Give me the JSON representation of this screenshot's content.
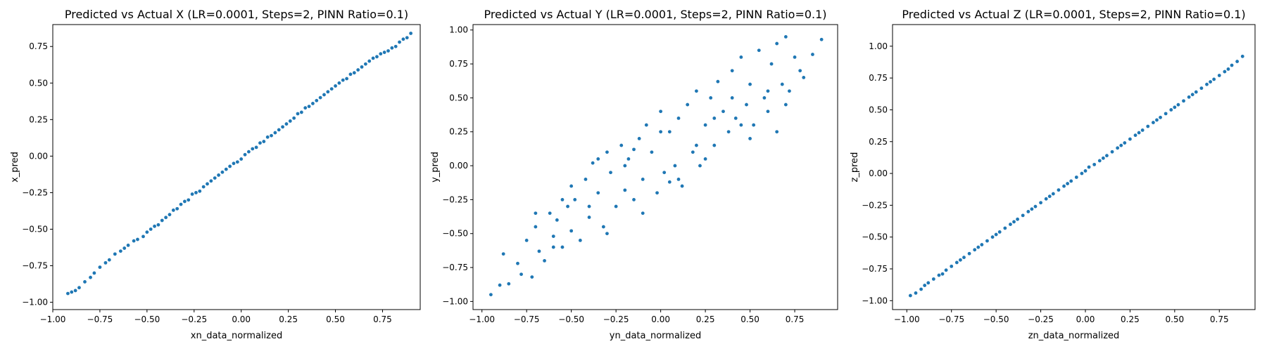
{
  "chart_data": [
    {
      "type": "scatter",
      "title": "Predicted vs Actual X (LR=0.0001, Steps=2, PINN Ratio=0.1)",
      "xlabel": "xn_data_normalized",
      "ylabel": "x_pred",
      "xlim": [
        -1.0,
        0.95
      ],
      "ylim": [
        -1.05,
        0.9
      ],
      "xticks": [
        -1.0,
        -0.75,
        -0.5,
        -0.25,
        0.0,
        0.25,
        0.5,
        0.75
      ],
      "yticks": [
        -1.0,
        -0.75,
        -0.5,
        -0.25,
        0.0,
        0.25,
        0.5,
        0.75
      ],
      "grid": false,
      "color": "#1f77b4",
      "series": [
        {
          "x": [
            -0.92,
            -0.9,
            -0.88,
            -0.86,
            -0.83,
            -0.8,
            -0.78,
            -0.75,
            -0.72,
            -0.7,
            -0.67,
            -0.64,
            -0.62,
            -0.6,
            -0.57,
            -0.55,
            -0.52,
            -0.5,
            -0.48,
            -0.46,
            -0.44,
            -0.42,
            -0.4,
            -0.38,
            -0.36,
            -0.34,
            -0.32,
            -0.3,
            -0.28,
            -0.26,
            -0.24,
            -0.22,
            -0.2,
            -0.18,
            -0.16,
            -0.14,
            -0.12,
            -0.1,
            -0.08,
            -0.06,
            -0.04,
            -0.02,
            0.0,
            0.02,
            0.04,
            0.06,
            0.08,
            0.1,
            0.12,
            0.14,
            0.16,
            0.18,
            0.2,
            0.22,
            0.24,
            0.26,
            0.28,
            0.3,
            0.32,
            0.34,
            0.36,
            0.38,
            0.4,
            0.42,
            0.44,
            0.46,
            0.48,
            0.5,
            0.52,
            0.54,
            0.56,
            0.58,
            0.6,
            0.62,
            0.64,
            0.66,
            0.68,
            0.7,
            0.72,
            0.74,
            0.76,
            0.78,
            0.8,
            0.82,
            0.84,
            0.86,
            0.88,
            0.9
          ],
          "y": [
            -0.94,
            -0.93,
            -0.92,
            -0.9,
            -0.86,
            -0.83,
            -0.8,
            -0.76,
            -0.73,
            -0.71,
            -0.67,
            -0.65,
            -0.63,
            -0.61,
            -0.58,
            -0.57,
            -0.55,
            -0.52,
            -0.5,
            -0.48,
            -0.47,
            -0.44,
            -0.42,
            -0.4,
            -0.37,
            -0.36,
            -0.33,
            -0.31,
            -0.3,
            -0.26,
            -0.25,
            -0.24,
            -0.21,
            -0.19,
            -0.17,
            -0.15,
            -0.13,
            -0.11,
            -0.09,
            -0.07,
            -0.05,
            -0.04,
            -0.02,
            0.01,
            0.03,
            0.05,
            0.06,
            0.09,
            0.1,
            0.13,
            0.14,
            0.16,
            0.18,
            0.2,
            0.22,
            0.24,
            0.26,
            0.29,
            0.3,
            0.33,
            0.34,
            0.36,
            0.38,
            0.4,
            0.42,
            0.44,
            0.46,
            0.48,
            0.5,
            0.52,
            0.53,
            0.56,
            0.57,
            0.59,
            0.61,
            0.63,
            0.65,
            0.67,
            0.68,
            0.7,
            0.71,
            0.72,
            0.74,
            0.75,
            0.78,
            0.8,
            0.81,
            0.84
          ]
        }
      ]
    },
    {
      "type": "scatter",
      "title": "Predicted vs Actual Y (LR=0.0001, Steps=2, PINN Ratio=0.1)",
      "xlabel": "yn_data_normalized",
      "ylabel": "y_pred",
      "xlim": [
        -1.05,
        0.99
      ],
      "ylim": [
        -1.06,
        1.04
      ],
      "xticks": [
        -1.0,
        -0.75,
        -0.5,
        -0.25,
        0.0,
        0.25,
        0.5,
        0.75
      ],
      "yticks": [
        -1.0,
        -0.75,
        -0.5,
        -0.25,
        0.0,
        0.25,
        0.5,
        0.75,
        1.0
      ],
      "grid": false,
      "color": "#1f77b4",
      "series": [
        {
          "x": [
            -0.95,
            -0.9,
            -0.88,
            -0.85,
            -0.8,
            -0.78,
            -0.75,
            -0.72,
            -0.7,
            -0.68,
            -0.65,
            -0.62,
            -0.6,
            -0.58,
            -0.55,
            -0.52,
            -0.5,
            -0.48,
            -0.45,
            -0.42,
            -0.4,
            -0.38,
            -0.35,
            -0.32,
            -0.3,
            -0.28,
            -0.25,
            -0.22,
            -0.2,
            -0.18,
            -0.15,
            -0.12,
            -0.1,
            -0.08,
            -0.05,
            -0.02,
            0.0,
            0.02,
            0.05,
            0.08,
            0.1,
            0.12,
            0.15,
            0.18,
            0.2,
            0.22,
            0.25,
            0.28,
            0.3,
            0.32,
            0.35,
            0.38,
            0.4,
            0.42,
            0.45,
            0.48,
            0.5,
            0.52,
            0.55,
            0.58,
            0.6,
            0.62,
            0.65,
            0.68,
            0.7,
            0.72,
            0.75,
            0.78,
            0.8,
            0.85,
            0.9,
            -0.7,
            -0.6,
            -0.5,
            -0.4,
            -0.3,
            -0.2,
            -0.1,
            0.0,
            0.1,
            0.2,
            0.3,
            0.4,
            0.5,
            0.6,
            0.7,
            -0.55,
            -0.35,
            -0.15,
            0.05,
            0.25,
            0.45,
            0.65
          ],
          "y": [
            -0.95,
            -0.88,
            -0.65,
            -0.87,
            -0.72,
            -0.8,
            -0.55,
            -0.82,
            -0.45,
            -0.63,
            -0.7,
            -0.35,
            -0.52,
            -0.4,
            -0.6,
            -0.3,
            -0.48,
            -0.25,
            -0.55,
            -0.1,
            -0.38,
            0.02,
            -0.2,
            -0.45,
            0.1,
            -0.05,
            -0.3,
            0.15,
            -0.18,
            0.05,
            -0.25,
            0.2,
            -0.1,
            0.3,
            0.1,
            -0.2,
            0.4,
            -0.05,
            0.25,
            0.0,
            0.35,
            -0.15,
            0.45,
            0.1,
            0.55,
            0.0,
            0.3,
            0.5,
            0.15,
            0.62,
            0.4,
            0.25,
            0.7,
            0.35,
            0.8,
            0.45,
            0.6,
            0.3,
            0.85,
            0.5,
            0.4,
            0.75,
            0.9,
            0.6,
            0.95,
            0.55,
            0.8,
            0.7,
            0.65,
            0.82,
            0.93,
            -0.35,
            -0.6,
            -0.15,
            -0.3,
            -0.5,
            0.0,
            -0.35,
            0.25,
            -0.1,
            0.15,
            0.35,
            0.5,
            0.2,
            0.55,
            0.45,
            -0.25,
            0.05,
            0.12,
            -0.12,
            0.05,
            0.3,
            0.25
          ]
        }
      ]
    },
    {
      "type": "scatter",
      "title": "Predicted vs Actual Z (LR=0.0001, Steps=2, PINN Ratio=0.1)",
      "xlabel": "zn_data_normalized",
      "ylabel": "z_pred",
      "xlim": [
        -1.08,
        0.95
      ],
      "ylim": [
        -1.07,
        1.17
      ],
      "xticks": [
        -1.0,
        -0.75,
        -0.5,
        -0.25,
        0.0,
        0.25,
        0.5,
        0.75
      ],
      "yticks": [
        -1.0,
        -0.75,
        -0.5,
        -0.25,
        0.0,
        0.25,
        0.5,
        0.75,
        1.0
      ],
      "grid": false,
      "color": "#1f77b4",
      "series": [
        {
          "x": [
            -0.98,
            -0.95,
            -0.92,
            -0.9,
            -0.88,
            -0.85,
            -0.82,
            -0.8,
            -0.78,
            -0.75,
            -0.72,
            -0.7,
            -0.68,
            -0.65,
            -0.62,
            -0.6,
            -0.58,
            -0.55,
            -0.52,
            -0.5,
            -0.48,
            -0.45,
            -0.42,
            -0.4,
            -0.38,
            -0.35,
            -0.32,
            -0.3,
            -0.28,
            -0.25,
            -0.22,
            -0.2,
            -0.18,
            -0.15,
            -0.12,
            -0.1,
            -0.08,
            -0.05,
            -0.02,
            0.0,
            0.02,
            0.05,
            0.08,
            0.1,
            0.12,
            0.15,
            0.18,
            0.2,
            0.22,
            0.25,
            0.28,
            0.3,
            0.32,
            0.35,
            0.38,
            0.4,
            0.42,
            0.45,
            0.48,
            0.5,
            0.52,
            0.55,
            0.58,
            0.6,
            0.62,
            0.65,
            0.68,
            0.7,
            0.72,
            0.75,
            0.78,
            0.8,
            0.82,
            0.85,
            0.88
          ],
          "y": [
            -0.96,
            -0.94,
            -0.91,
            -0.88,
            -0.86,
            -0.83,
            -0.8,
            -0.79,
            -0.76,
            -0.73,
            -0.7,
            -0.68,
            -0.66,
            -0.63,
            -0.6,
            -0.58,
            -0.56,
            -0.53,
            -0.5,
            -0.48,
            -0.46,
            -0.43,
            -0.4,
            -0.38,
            -0.36,
            -0.33,
            -0.3,
            -0.28,
            -0.26,
            -0.23,
            -0.2,
            -0.18,
            -0.16,
            -0.13,
            -0.1,
            -0.08,
            -0.06,
            -0.03,
            0.0,
            0.02,
            0.05,
            0.07,
            0.1,
            0.12,
            0.14,
            0.17,
            0.2,
            0.22,
            0.24,
            0.27,
            0.3,
            0.32,
            0.34,
            0.37,
            0.4,
            0.42,
            0.44,
            0.47,
            0.5,
            0.52,
            0.54,
            0.57,
            0.6,
            0.62,
            0.64,
            0.67,
            0.7,
            0.72,
            0.74,
            0.77,
            0.8,
            0.82,
            0.85,
            0.88,
            0.92
          ]
        }
      ]
    }
  ]
}
